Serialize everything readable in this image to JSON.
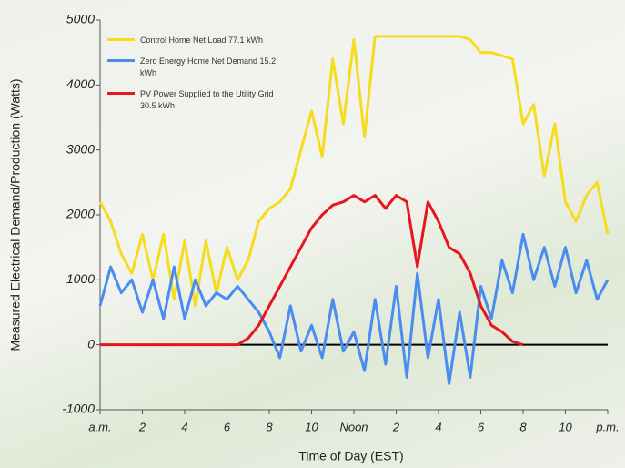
{
  "chart_data": {
    "type": "line",
    "title": null,
    "xlabel": "Time of Day (EST)",
    "ylabel": "Measured Electrical Demand/Production (Watts)",
    "x": [
      0,
      0.5,
      1,
      1.5,
      2,
      2.5,
      3,
      3.5,
      4,
      4.5,
      5,
      5.5,
      6,
      6.5,
      7,
      7.5,
      8,
      8.5,
      9,
      9.5,
      10,
      10.5,
      11,
      11.5,
      12,
      12.5,
      13,
      13.5,
      14,
      14.5,
      15,
      15.5,
      16,
      16.5,
      17,
      17.5,
      18,
      18.5,
      19,
      19.5,
      20,
      20.5,
      21,
      21.5,
      22,
      22.5,
      23,
      23.5,
      24
    ],
    "series": [
      {
        "name": "Control Home Net Load 77.1 kWh",
        "color": "#f5dc1e",
        "values": [
          2200,
          1900,
          1400,
          1100,
          1700,
          1000,
          1700,
          700,
          1600,
          600,
          1600,
          800,
          1500,
          1000,
          1300,
          1900,
          2100,
          2200,
          2400,
          3000,
          3600,
          2900,
          4400,
          3400,
          4700,
          3200,
          4750,
          4750,
          4750,
          4750,
          4750,
          4750,
          4750,
          4750,
          4750,
          4700,
          4500,
          4500,
          4450,
          4400,
          3400,
          3700,
          2600,
          3400,
          2200,
          1900,
          2300,
          2500,
          1700
        ]
      },
      {
        "name": "Zero Energy Home Net Demand 15.2 kWh",
        "color": "#4a8cf0",
        "values": [
          600,
          1200,
          800,
          1000,
          500,
          1000,
          400,
          1200,
          400,
          1000,
          600,
          800,
          700,
          900,
          700,
          500,
          200,
          -200,
          600,
          -100,
          300,
          -200,
          700,
          -100,
          200,
          -400,
          700,
          -300,
          900,
          -500,
          1100,
          -200,
          700,
          -600,
          500,
          -500,
          900,
          400,
          1300,
          800,
          1700,
          1000,
          1500,
          900,
          1500,
          800,
          1300,
          700,
          1000
        ]
      },
      {
        "name": "PV Power Supplied to the Utility Grid 30.5 kWh",
        "color": "#e8141e",
        "values": [
          0,
          0,
          0,
          0,
          0,
          0,
          0,
          0,
          0,
          0,
          0,
          0,
          0,
          0,
          100,
          300,
          600,
          900,
          1200,
          1500,
          1800,
          2000,
          2150,
          2200,
          2300,
          2200,
          2300,
          2100,
          2300,
          2200,
          1200,
          2200,
          1900,
          1500,
          1400,
          1100,
          600,
          300,
          200,
          50,
          0,
          null,
          null,
          null,
          null,
          null,
          null,
          null,
          null
        ]
      }
    ],
    "xlim": [
      0,
      24
    ],
    "xticks": [
      {
        "value": 0,
        "label": "a.m."
      },
      2,
      4,
      6,
      8,
      10,
      {
        "value": 12,
        "label": "Noon"
      },
      {
        "value": 14,
        "label": "2"
      },
      {
        "value": 16,
        "label": "4"
      },
      {
        "value": 18,
        "label": "6"
      },
      {
        "value": 20,
        "label": "8"
      },
      {
        "value": 22,
        "label": "10"
      },
      {
        "value": 24,
        "label": "p.m."
      }
    ],
    "ylim": [
      -1000,
      5000
    ],
    "yticks": [
      -1000,
      0,
      1000,
      2000,
      3000,
      4000,
      5000
    ],
    "grid": false,
    "legend": "upper left"
  }
}
